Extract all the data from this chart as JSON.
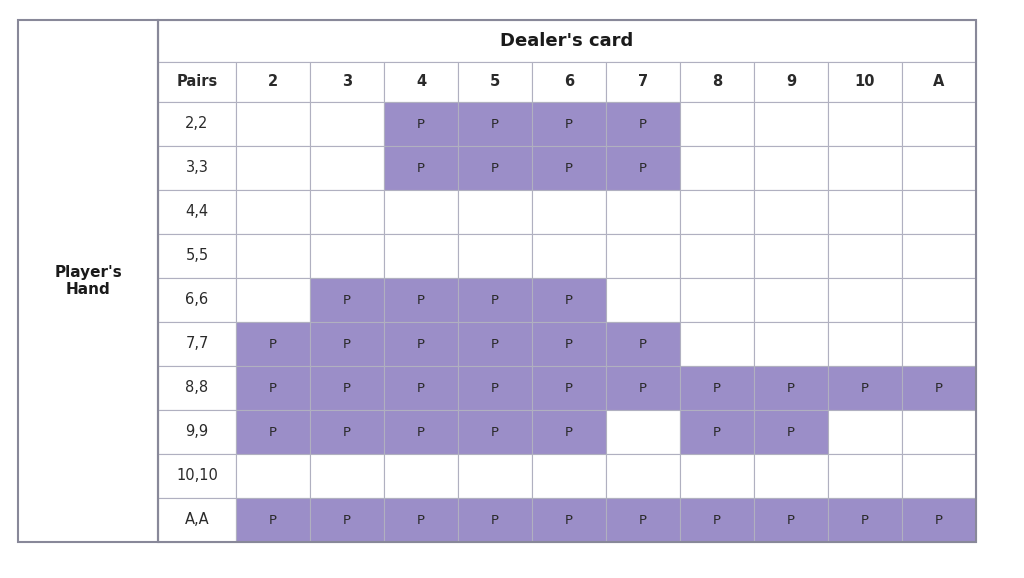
{
  "title_dealers": "Dealer's card",
  "title_players": "Player's\nHand",
  "col_header": [
    "Pairs",
    "2",
    "3",
    "4",
    "5",
    "6",
    "7",
    "8",
    "9",
    "10",
    "A"
  ],
  "row_labels": [
    "2,2",
    "3,3",
    "4,4",
    "5,5",
    "6,6",
    "7,7",
    "8,8",
    "9,9",
    "10,10",
    "A,A"
  ],
  "cell_data": [
    [
      "",
      "",
      "P",
      "P",
      "P",
      "P",
      "",
      "",
      "",
      ""
    ],
    [
      "",
      "",
      "P",
      "P",
      "P",
      "P",
      "",
      "",
      "",
      ""
    ],
    [
      "",
      "",
      "",
      "",
      "",
      "",
      "",
      "",
      "",
      ""
    ],
    [
      "",
      "",
      "",
      "",
      "",
      "",
      "",
      "",
      "",
      ""
    ],
    [
      "",
      "P",
      "P",
      "P",
      "P",
      "",
      "",
      "",
      "",
      ""
    ],
    [
      "P",
      "P",
      "P",
      "P",
      "P",
      "P",
      "",
      "",
      "",
      ""
    ],
    [
      "P",
      "P",
      "P",
      "P",
      "P",
      "P",
      "P",
      "P",
      "P",
      "P"
    ],
    [
      "P",
      "P",
      "P",
      "P",
      "P",
      "",
      "P",
      "P",
      "",
      ""
    ],
    [
      "",
      "",
      "",
      "",
      "",
      "",
      "",
      "",
      "",
      ""
    ],
    [
      "P",
      "P",
      "P",
      "P",
      "P",
      "P",
      "P",
      "P",
      "P",
      "P"
    ]
  ],
  "highlight_color": "#9b8ec8",
  "cell_bg": "#ffffff",
  "border_color": "#b0b0c0",
  "outer_border_color": "#888899",
  "text_color": "#2a2a2a",
  "title_color": "#1a1a1a",
  "fig_bg": "#ffffff",
  "left_panel_bg": "#ffffff",
  "dealer_title_fontsize": 13,
  "header_fontsize": 10.5,
  "cell_fontsize": 9.5,
  "players_hand_fontsize": 11
}
